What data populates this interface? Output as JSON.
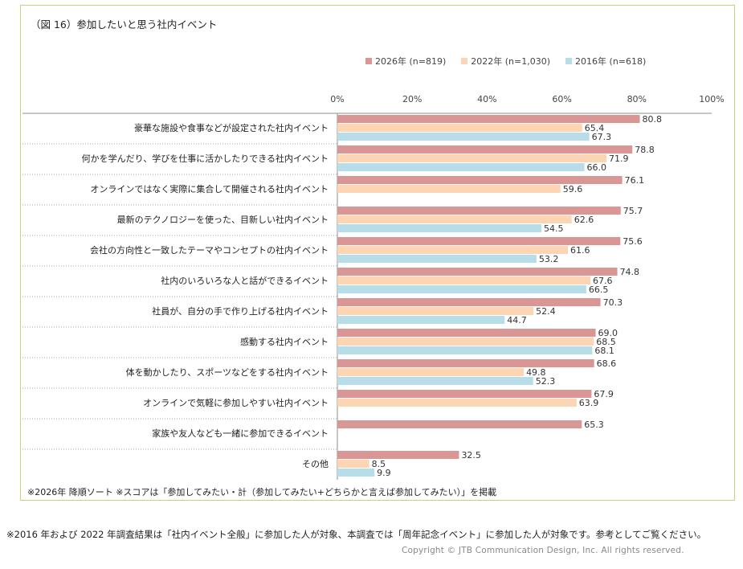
{
  "chart_data": {
    "type": "bar",
    "orientation": "horizontal",
    "title": "（図 16）参加したいと思う社内イベント",
    "categories": [
      "豪華な施設や食事などが設定された社内イベント",
      "何かを学んだり、学びを仕事に活かしたりできる社内イベント",
      "オンラインではなく実際に集合して開催される社内イベント",
      "最新のテクノロジーを使った、目新しい社内イベント",
      "会社の方向性と一致したテーマやコンセプトの社内イベント",
      "社内のいろいろな人と話ができるイベント",
      "社員が、自分の手で作り上げる社内イベント",
      "感動する社内イベント",
      "体を動かしたり、スポーツなどをする社内イベント",
      "オンラインで気軽に参加しやすい社内イベント",
      "家族や友人なども一緒に参加できるイベント",
      "その他"
    ],
    "series": [
      {
        "name": "2026年 (n=819)",
        "color": "#d99694",
        "values": [
          80.8,
          78.8,
          76.1,
          75.7,
          75.6,
          74.8,
          70.3,
          69.0,
          68.6,
          67.9,
          65.3,
          32.5
        ]
      },
      {
        "name": "2022年 (n=1,030)",
        "color": "#fcd5b5",
        "values": [
          65.4,
          71.9,
          59.6,
          62.6,
          61.6,
          67.6,
          52.4,
          68.5,
          49.8,
          63.9,
          null,
          8.5
        ]
      },
      {
        "name": "2016年 (n=618)",
        "color": "#b7dee8",
        "values": [
          67.3,
          66.0,
          null,
          54.5,
          53.2,
          66.5,
          44.7,
          68.1,
          52.3,
          null,
          null,
          9.9
        ]
      }
    ],
    "xlim": [
      0,
      100
    ],
    "xticks": [
      "0%",
      "20%",
      "40%",
      "60%",
      "80%",
      "100%"
    ],
    "legend_position": "top-right",
    "grid": false
  },
  "footnote": "※2026年 降順ソート ※スコアは「参加してみたい・計（参加してみたい+どちらかと言えば参加してみたい）」を掲載",
  "bottom_note": "※2016 年および 2022 年調査結果は「社内イベント全般」に参加した人が対象、本調査では「周年記念イベント」に参加した人が対象です。参考としてご覧ください。",
  "copyright": "Copyright © JTB Communication Design, Inc. All rights reserved."
}
